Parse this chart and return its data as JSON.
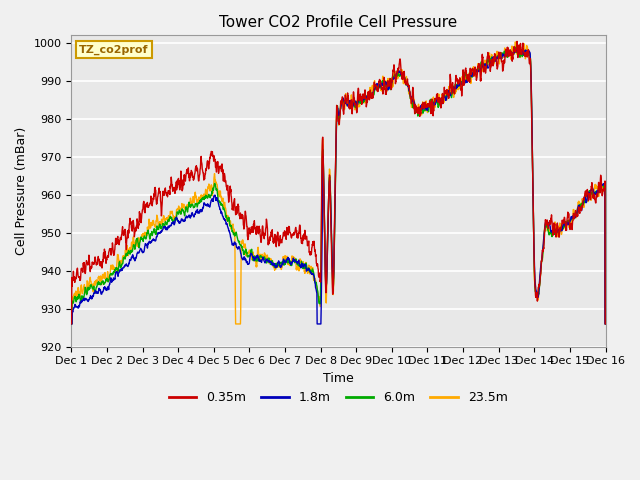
{
  "title": "Tower CO2 Profile Cell Pressure",
  "xlabel": "Time",
  "ylabel": "Cell Pressure (mBar)",
  "ylim": [
    920,
    1002
  ],
  "xlim": [
    0,
    15
  ],
  "xtick_labels": [
    "Dec 1",
    "Dec 2",
    "Dec 3",
    "Dec 4",
    "Dec 5",
    "Dec 6",
    "Dec 7",
    "Dec 8",
    "Dec 9",
    "Dec 10",
    "Dec 11",
    "Dec 12",
    "Dec 13",
    "Dec 14",
    "Dec 15",
    "Dec 16"
  ],
  "ytick_values": [
    920,
    930,
    940,
    950,
    960,
    970,
    980,
    990,
    1000
  ],
  "legend_label": "TZ_co2prof",
  "series_labels": [
    "0.35m",
    "1.8m",
    "6.0m",
    "23.5m"
  ],
  "series_colors": [
    "#cc0000",
    "#0000bb",
    "#00aa00",
    "#ffaa00"
  ],
  "background_color": "#e8e8e8",
  "grid_color": "#ffffff",
  "title_fontsize": 11,
  "axis_fontsize": 9,
  "tick_fontsize": 8
}
